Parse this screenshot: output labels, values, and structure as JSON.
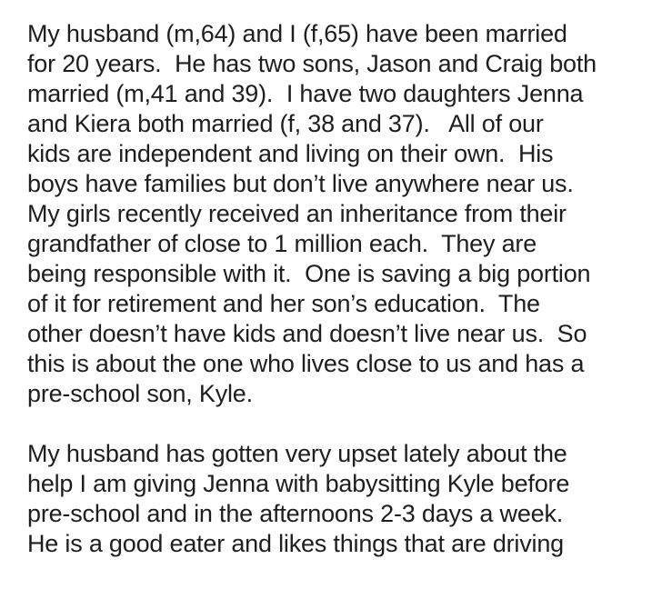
{
  "page": {
    "background_color": "#ffffff",
    "text_color": "#1e1e1e"
  },
  "post": {
    "paragraphs": [
      {
        "lines": [
          "My husband (m,64) and I (f,65) have been married",
          "for 20 years.  He has two sons, Jason and Craig both",
          "married (m,41 and 39).  I have two daughters Jenna",
          "and Kiera both married (f, 38 and 37).   All of our",
          "kids are independent and living on their own.  His",
          "boys have families but don’t live anywhere near us.",
          "My girls recently received an inheritance from their",
          "grandfather of close to 1 million each.  They are",
          "being responsible with it.  One is saving a big portion",
          "of it for retirement and her son’s education.  The",
          "other doesn’t have kids and doesn’t live near us.  So",
          "this is about the one who lives close to us and has a",
          "pre-school son, Kyle."
        ]
      },
      {
        "lines": [
          "My husband has gotten very upset lately about the",
          "help I am giving Jenna with babysitting Kyle before",
          "pre-school and in the afternoons 2-3 days a week.",
          "He is a good eater and likes things that are driving"
        ]
      }
    ]
  }
}
